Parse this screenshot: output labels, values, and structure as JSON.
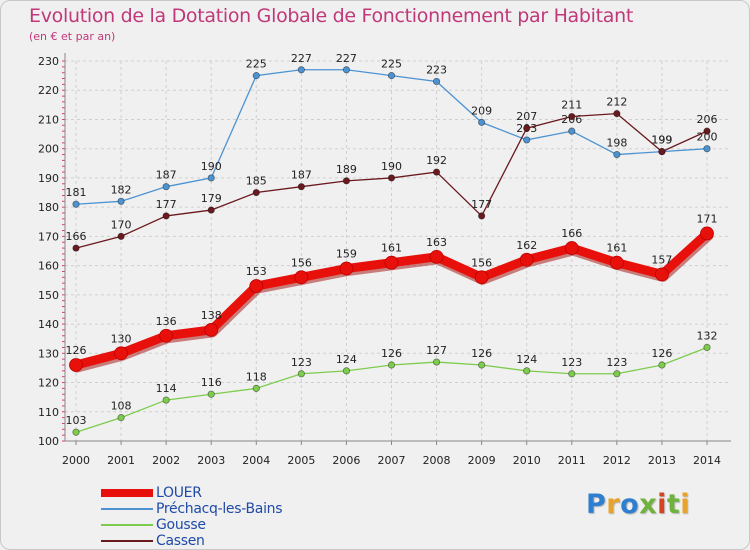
{
  "title": "Evolution de la Dotation Globale de Fonctionnement par Habitant",
  "subtitle": "(en € et par an)",
  "logo": {
    "letters": [
      "P",
      "r",
      "o",
      "x",
      "i",
      "t",
      "i"
    ]
  },
  "colors": {
    "title": "#c0387a",
    "axis_text": "#222222",
    "legend_text": "#1f4aa8",
    "grid": "#cfcfcf"
  },
  "chart_data": {
    "type": "line",
    "title": "Evolution de la Dotation Globale de Fonctionnement par Habitant",
    "subtitle": "(en € et par an)",
    "xlabel": "",
    "ylabel": "",
    "categories": [
      "2000",
      "2001",
      "2002",
      "2003",
      "2004",
      "2005",
      "2006",
      "2007",
      "2008",
      "2009",
      "2010",
      "2011",
      "2012",
      "2013",
      "2014"
    ],
    "ylim": [
      100,
      230
    ],
    "yticks": [
      100,
      110,
      120,
      130,
      140,
      150,
      160,
      170,
      180,
      190,
      200,
      210,
      220,
      230
    ],
    "grid": true,
    "legend_position": "bottom-left",
    "series": [
      {
        "name": "LOUER",
        "color": "#e8100b",
        "emphasis": true,
        "values": [
          126,
          130,
          136,
          138,
          153,
          156,
          159,
          161,
          163,
          156,
          162,
          166,
          161,
          157,
          171
        ]
      },
      {
        "name": "Préchacq-les-Bains",
        "color": "#4d93d1",
        "values": [
          181,
          182,
          187,
          190,
          225,
          227,
          227,
          225,
          223,
          209,
          203,
          206,
          198,
          199,
          200
        ]
      },
      {
        "name": "Gousse",
        "color": "#7dcc4d",
        "values": [
          103,
          108,
          114,
          116,
          118,
          123,
          124,
          126,
          127,
          126,
          124,
          123,
          123,
          126,
          132
        ]
      },
      {
        "name": "Cassen",
        "color": "#6a1a1f",
        "values": [
          166,
          170,
          177,
          179,
          185,
          187,
          189,
          190,
          192,
          177,
          207,
          211,
          212,
          199,
          206
        ]
      }
    ]
  }
}
